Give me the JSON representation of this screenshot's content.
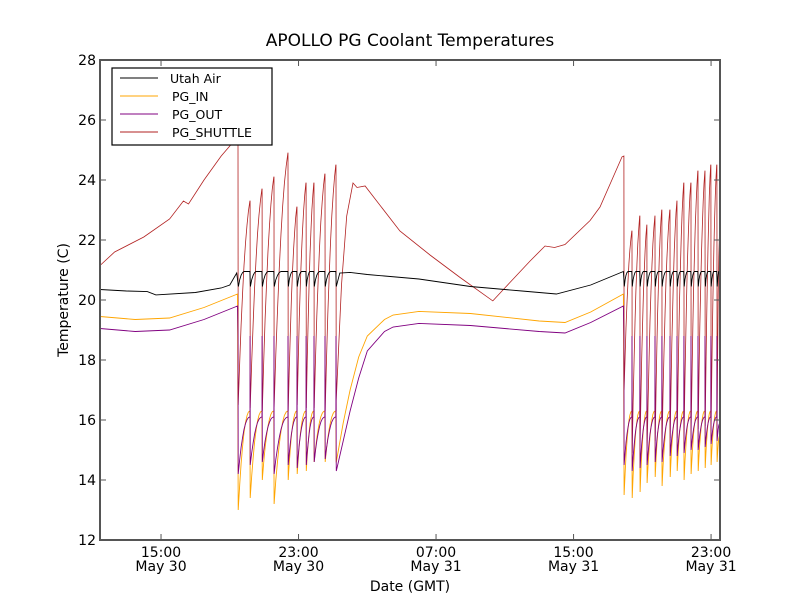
{
  "chart_data": {
    "type": "line",
    "title": "APOLLO PG Coolant Temperatures",
    "xlabel": "Date (GMT)",
    "ylabel": "Temperature (C)",
    "x_units": "hours since May 30 00:00 GMT",
    "xlim": [
      11.45,
      47.52
    ],
    "ylim": [
      12,
      28
    ],
    "yticks": [
      12,
      14,
      16,
      18,
      20,
      22,
      24,
      26,
      28
    ],
    "xticks": [
      {
        "value": 15,
        "time": "15:00",
        "date": "May 30"
      },
      {
        "value": 23,
        "time": "23:00",
        "date": "May 30"
      },
      {
        "value": 31,
        "time": "07:00",
        "date": "May 31"
      },
      {
        "value": 39,
        "time": "15:00",
        "date": "May 31"
      },
      {
        "value": 47,
        "time": "23:00",
        "date": "May 31"
      }
    ],
    "grid": false,
    "legend": {
      "placement": "top-left",
      "entries": [
        "Utah Air",
        "PG_IN",
        "PG_OUT",
        "PG_SHUTTLE"
      ]
    },
    "series": [
      {
        "name": "Utah Air",
        "color": "#000000",
        "calm_segments": [
          [
            [
              11.45,
              20.35
            ],
            [
              13.0,
              20.3
            ],
            [
              14.2,
              20.28
            ],
            [
              14.7,
              20.17
            ],
            [
              17.0,
              20.25
            ],
            [
              18.5,
              20.4
            ],
            [
              19.0,
              20.5
            ],
            [
              19.4,
              20.9
            ]
          ],
          [
            [
              25.4,
              20.9
            ],
            [
              26.0,
              20.92
            ],
            [
              27.0,
              20.85
            ],
            [
              28.0,
              20.8
            ],
            [
              30.0,
              20.7
            ],
            [
              33.0,
              20.45
            ],
            [
              36.0,
              20.3
            ],
            [
              38.0,
              20.2
            ],
            [
              40.0,
              20.5
            ],
            [
              41.9,
              20.95
            ]
          ]
        ],
        "cycle": {
          "low": 20.45,
          "high": 20.95
        }
      },
      {
        "name": "PG_IN",
        "color": "#ffa500",
        "calm_segments": [
          [
            [
              11.45,
              19.45
            ],
            [
              13.5,
              19.35
            ],
            [
              15.5,
              19.4
            ],
            [
              17.5,
              19.75
            ],
            [
              19.45,
              20.2
            ]
          ],
          [
            [
              25.2,
              14.6
            ],
            [
              25.6,
              15.9
            ],
            [
              26.0,
              17.0
            ],
            [
              26.5,
              18.1
            ],
            [
              27.0,
              18.8
            ],
            [
              28.0,
              19.35
            ],
            [
              28.5,
              19.5
            ],
            [
              30.0,
              19.62
            ],
            [
              33.0,
              19.55
            ],
            [
              37.0,
              19.3
            ],
            [
              38.5,
              19.25
            ],
            [
              40.0,
              19.6
            ],
            [
              41.9,
              20.2
            ]
          ]
        ],
        "cycle": {
          "rise_to": 16.3
        }
      },
      {
        "name": "PG_OUT",
        "color": "#800080",
        "calm_segments": [
          [
            [
              11.45,
              19.05
            ],
            [
              13.5,
              18.95
            ],
            [
              15.5,
              19.0
            ],
            [
              17.5,
              19.35
            ],
            [
              19.45,
              19.8
            ]
          ],
          [
            [
              25.2,
              14.3
            ],
            [
              25.6,
              15.3
            ],
            [
              26.0,
              16.3
            ],
            [
              26.5,
              17.4
            ],
            [
              27.0,
              18.3
            ],
            [
              28.0,
              18.95
            ],
            [
              28.5,
              19.1
            ],
            [
              30.0,
              19.22
            ],
            [
              33.0,
              19.15
            ],
            [
              37.0,
              18.95
            ],
            [
              38.5,
              18.9
            ],
            [
              40.0,
              19.25
            ],
            [
              41.9,
              19.8
            ]
          ]
        ],
        "cycle": {
          "spike": 18.8,
          "rise_to": 16.1
        }
      },
      {
        "name": "PG_SHUTTLE",
        "color": "#b22222",
        "calm_segments": [
          [
            [
              11.45,
              21.15
            ],
            [
              12.3,
              21.6
            ],
            [
              14.0,
              22.1
            ],
            [
              15.5,
              22.7
            ],
            [
              16.3,
              23.3
            ],
            [
              16.6,
              23.2
            ],
            [
              17.5,
              24.0
            ],
            [
              18.5,
              24.8
            ],
            [
              19.4,
              25.4
            ],
            [
              19.48,
              25.3
            ]
          ],
          [
            [
              25.18,
              16.5
            ],
            [
              25.5,
              20.5
            ],
            [
              25.8,
              22.8
            ],
            [
              26.17,
              23.9
            ],
            [
              26.4,
              23.75
            ],
            [
              26.87,
              23.8
            ],
            [
              28.9,
              22.3
            ],
            [
              30.65,
              21.5
            ],
            [
              32.4,
              20.75
            ],
            [
              34.3,
              19.97
            ],
            [
              35.0,
              20.4
            ],
            [
              36.47,
              21.3
            ],
            [
              37.34,
              21.8
            ],
            [
              37.9,
              21.75
            ],
            [
              38.5,
              21.85
            ],
            [
              39.96,
              22.65
            ],
            [
              40.54,
              23.1
            ],
            [
              41.82,
              24.77
            ],
            [
              41.93,
              24.8
            ]
          ]
        ]
      }
    ],
    "cycling_blocks": [
      {
        "drops": [
          19.48,
          20.18,
          20.88,
          21.57,
          22.39,
          22.91,
          23.44,
          23.9,
          24.54,
          25.18
        ],
        "shuttle_peaks": [
          25.3,
          23.3,
          23.7,
          24.1,
          24.9,
          23.1,
          23.9,
          23.9,
          24.2,
          24.5
        ],
        "shuttle_troughs": [
          16.5,
          16.4,
          16.3,
          16.4,
          16.3,
          16.5,
          16.4,
          16.4,
          16.3,
          16.3
        ],
        "in_mins": [
          13.0,
          13.4,
          14.0,
          13.2,
          14.0,
          14.2,
          14.3,
          14.6,
          14.6,
          14.6
        ],
        "out_mins": [
          14.2,
          14.5,
          14.6,
          14.2,
          14.5,
          14.4,
          14.5,
          14.6,
          14.7,
          14.6
        ]
      },
      {
        "drops": [
          41.93,
          42.4,
          42.86,
          43.27,
          43.74,
          44.14,
          44.61,
          45.02,
          45.42,
          45.83,
          46.24,
          46.65,
          46.99,
          47.34
        ],
        "shuttle_peaks": [
          24.8,
          22.3,
          22.8,
          22.5,
          22.8,
          23.0,
          23.0,
          23.3,
          23.9,
          23.9,
          24.3,
          24.3,
          24.5,
          24.5
        ],
        "shuttle_troughs": [
          17.0,
          14.9,
          15.2,
          15.0,
          15.3,
          15.2,
          15.4,
          15.4,
          15.5,
          15.6,
          15.7,
          15.8,
          15.8,
          15.9
        ],
        "in_mins": [
          13.5,
          13.4,
          13.6,
          13.9,
          14.1,
          13.8,
          14.1,
          14.3,
          14.0,
          14.2,
          14.3,
          14.4,
          14.5,
          14.6
        ],
        "out_mins": [
          14.5,
          14.3,
          14.4,
          14.5,
          14.6,
          14.6,
          14.8,
          14.8,
          14.9,
          15.0,
          15.0,
          15.1,
          15.2,
          15.3
        ]
      }
    ]
  }
}
